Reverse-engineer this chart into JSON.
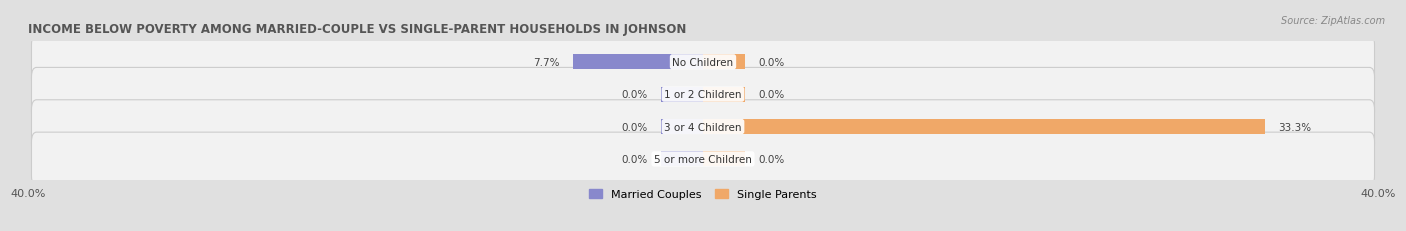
{
  "title": "INCOME BELOW POVERTY AMONG MARRIED-COUPLE VS SINGLE-PARENT HOUSEHOLDS IN JOHNSON",
  "source_text": "Source: ZipAtlas.com",
  "categories": [
    "No Children",
    "1 or 2 Children",
    "3 or 4 Children",
    "5 or more Children"
  ],
  "married_values": [
    7.7,
    0.0,
    0.0,
    0.0
  ],
  "single_values": [
    0.0,
    0.0,
    33.3,
    0.0
  ],
  "married_color": "#8888cc",
  "single_color": "#f0a868",
  "married_label": "Married Couples",
  "single_label": "Single Parents",
  "xlim_left": -40.0,
  "xlim_right": 40.0,
  "background_color": "#e0e0e0",
  "row_bg_color": "#f2f2f2",
  "title_fontsize": 8.5,
  "source_fontsize": 7.0,
  "value_fontsize": 7.5,
  "legend_fontsize": 8.0,
  "category_fontsize": 7.5,
  "tick_fontsize": 8.0,
  "bar_height": 0.62,
  "min_bar_width": 2.5
}
